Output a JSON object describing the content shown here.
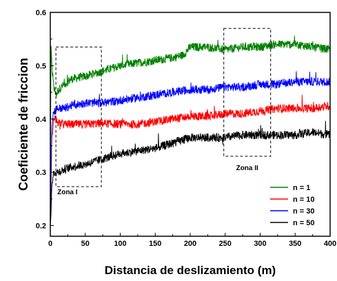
{
  "chart_data": {
    "type": "line",
    "xlabel": "Distancia de deslizamiento (m)",
    "ylabel": "Coeficiente de friccion",
    "xlim": [
      0,
      400
    ],
    "ylim": [
      0.18,
      0.6
    ],
    "x_ticks": [
      "0",
      "50",
      "100",
      "150",
      "200",
      "250",
      "300",
      "350",
      "400"
    ],
    "y_ticks": [
      "0.2",
      "0.3",
      "0.4",
      "0.5",
      "0.6"
    ],
    "legend_position": "bottom-right",
    "series": [
      {
        "name": "n = 1",
        "color": "#008000",
        "x": [
          0,
          1,
          3,
          5,
          8,
          12,
          20,
          30,
          50,
          75,
          100,
          125,
          150,
          175,
          190,
          200,
          225,
          250,
          275,
          300,
          320,
          350,
          375,
          400
        ],
        "y": [
          0.25,
          0.54,
          0.48,
          0.46,
          0.445,
          0.455,
          0.465,
          0.475,
          0.48,
          0.49,
          0.5,
          0.505,
          0.51,
          0.515,
          0.52,
          0.535,
          0.535,
          0.53,
          0.535,
          0.535,
          0.54,
          0.54,
          0.535,
          0.53
        ]
      },
      {
        "name": "n = 10",
        "color": "#ff0000",
        "x": [
          0,
          1,
          2,
          4,
          6,
          10,
          20,
          30,
          50,
          75,
          100,
          125,
          150,
          175,
          200,
          225,
          250,
          275,
          300,
          325,
          350,
          375,
          400
        ],
        "y": [
          0.2,
          0.26,
          0.36,
          0.39,
          0.4,
          0.395,
          0.39,
          0.39,
          0.39,
          0.392,
          0.39,
          0.39,
          0.395,
          0.4,
          0.405,
          0.405,
          0.41,
          0.41,
          0.415,
          0.42,
          0.42,
          0.42,
          0.425
        ]
      },
      {
        "name": "n = 30",
        "color": "#0000ff",
        "x": [
          0,
          1,
          2,
          4,
          6,
          10,
          20,
          30,
          50,
          75,
          100,
          125,
          150,
          175,
          200,
          225,
          250,
          275,
          300,
          325,
          350,
          375,
          400
        ],
        "y": [
          0.2,
          0.28,
          0.38,
          0.41,
          0.415,
          0.42,
          0.42,
          0.425,
          0.43,
          0.43,
          0.435,
          0.44,
          0.445,
          0.45,
          0.455,
          0.455,
          0.46,
          0.46,
          0.465,
          0.465,
          0.47,
          0.47,
          0.47
        ]
      },
      {
        "name": "n = 50",
        "color": "#000000",
        "x": [
          0,
          1,
          2,
          4,
          6,
          10,
          20,
          30,
          50,
          75,
          100,
          125,
          150,
          175,
          200,
          225,
          250,
          275,
          300,
          325,
          350,
          375,
          400
        ],
        "y": [
          0.2,
          0.22,
          0.27,
          0.295,
          0.3,
          0.3,
          0.305,
          0.31,
          0.315,
          0.325,
          0.335,
          0.34,
          0.345,
          0.355,
          0.365,
          0.365,
          0.365,
          0.37,
          0.37,
          0.37,
          0.37,
          0.375,
          0.37
        ]
      }
    ],
    "annotations": [
      {
        "label": "Zona I",
        "x_range": [
          8,
          73
        ],
        "y_range": [
          0.273,
          0.535
        ]
      },
      {
        "label": "Zona II",
        "x_range": [
          248,
          315
        ],
        "y_range": [
          0.33,
          0.57
        ]
      }
    ]
  }
}
